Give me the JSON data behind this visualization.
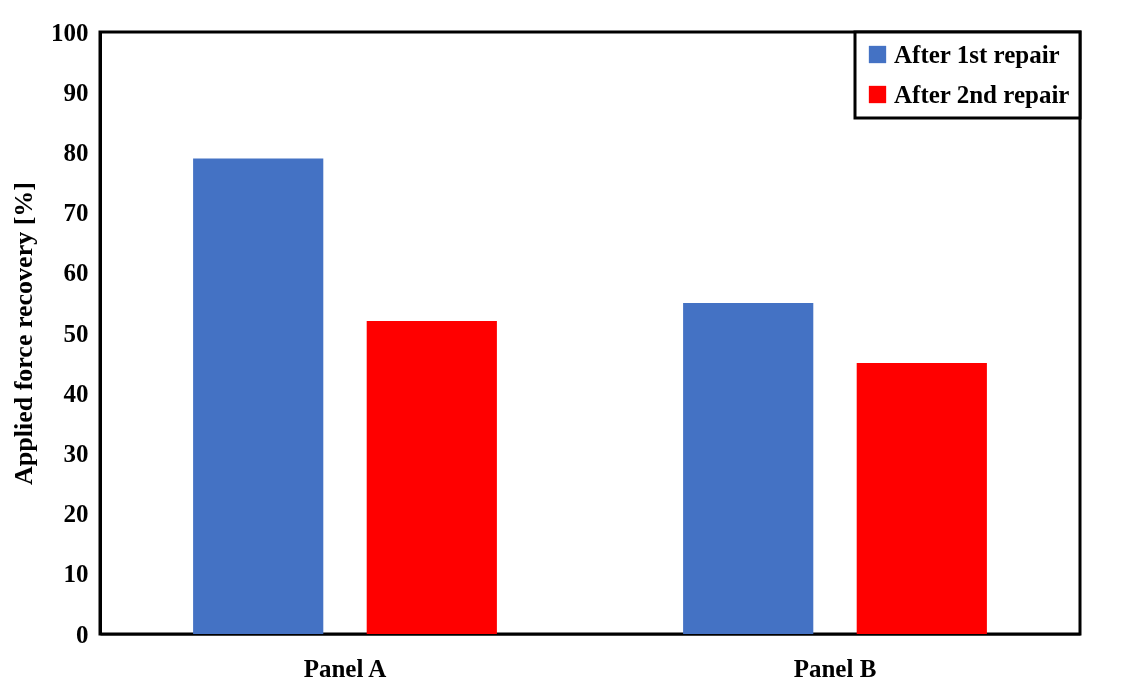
{
  "chart_data": {
    "type": "bar",
    "ylabel": "Applied force recovery [%]",
    "categories": [
      "Panel A",
      "Panel B"
    ],
    "series": [
      {
        "name": "After 1st repair",
        "color": "#4472c4",
        "values": [
          79,
          55
        ]
      },
      {
        "name": "After 2nd repair",
        "color": "#ff0000",
        "values": [
          52,
          45
        ]
      }
    ],
    "ylim": [
      0,
      100
    ],
    "yticks": [
      0,
      10,
      20,
      30,
      40,
      50,
      60,
      70,
      80,
      90,
      100
    ],
    "grid": false,
    "legend": "top right"
  }
}
